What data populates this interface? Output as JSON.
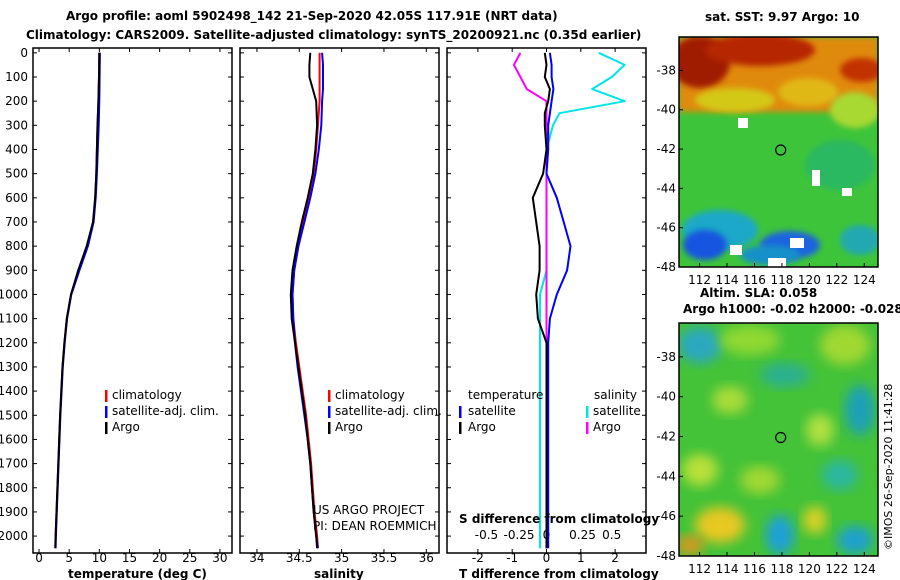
{
  "header": {
    "line1": "Argo profile: aoml 5902498_142 21-Sep-2020 42.05S 117.91E (NRT data)",
    "line2": "Climatology: CARS2009. Satellite-adjusted climatology: synTS_20200921.nc (0.35d earlier)"
  },
  "credits": {
    "project": "US ARGO PROJECT",
    "pi": "PI: DEAN ROEMMICH"
  },
  "watermark": "©IMOS 26-Sep-2020 11:41:28",
  "colors": {
    "clim": "#ff0000",
    "sat": "#0000ff",
    "argo": "#000000",
    "sat_sal": "#00e5e5",
    "argo_sal": "#ff00ff"
  },
  "chart_data": [
    {
      "type": "line",
      "id": "temperature",
      "xlabel": "temperature (deg C)",
      "xlim": [
        -1,
        32
      ],
      "ylim": [
        2070,
        -20
      ],
      "xticks": [
        0,
        5,
        10,
        15,
        20,
        25,
        30
      ],
      "yticks": [
        0,
        100,
        200,
        300,
        400,
        500,
        600,
        700,
        800,
        900,
        1000,
        1100,
        1200,
        1300,
        1400,
        1500,
        1600,
        1700,
        1800,
        1900,
        2000
      ],
      "legend": [
        "climatology",
        "satellite-adj. clim.",
        "Argo"
      ],
      "depth": [
        0,
        100,
        200,
        300,
        400,
        500,
        600,
        700,
        800,
        900,
        1000,
        1100,
        1200,
        1300,
        1400,
        1500,
        1600,
        1700,
        1800,
        1900,
        2000,
        2050
      ],
      "series": [
        {
          "name": "climatology",
          "values": [
            10.0,
            9.95,
            9.85,
            9.7,
            9.6,
            9.5,
            9.35,
            9.0,
            8.0,
            6.6,
            5.3,
            4.6,
            4.2,
            3.9,
            3.7,
            3.5,
            3.35,
            3.2,
            3.05,
            2.9,
            2.75,
            2.7
          ]
        },
        {
          "name": "satellite-adj. clim.",
          "values": [
            10.1,
            10.05,
            10.0,
            9.9,
            9.75,
            9.6,
            9.4,
            9.05,
            8.1,
            6.7,
            5.35,
            4.65,
            4.25,
            3.95,
            3.75,
            3.55,
            3.4,
            3.25,
            3.1,
            2.95,
            2.8,
            2.75
          ]
        },
        {
          "name": "Argo",
          "values": [
            10.0,
            9.95,
            9.85,
            9.7,
            9.6,
            9.5,
            9.3,
            8.95,
            7.9,
            6.5,
            5.3,
            4.6,
            4.2,
            3.9,
            3.7,
            3.5,
            3.35,
            3.2,
            3.05,
            2.9,
            2.75,
            2.7
          ]
        }
      ]
    },
    {
      "type": "line",
      "id": "salinity",
      "xlabel": "salinity",
      "xlim": [
        33.8,
        36.15
      ],
      "ylim": [
        2070,
        -20
      ],
      "xticks": [
        34,
        34.5,
        35,
        35.5,
        36
      ],
      "legend": [
        "climatology",
        "satellite-adj. clim.",
        "Argo"
      ],
      "depth": [
        0,
        50,
        100,
        150,
        200,
        300,
        400,
        500,
        600,
        700,
        800,
        900,
        1000,
        1100,
        1200,
        1300,
        1400,
        1500,
        1600,
        1700,
        1800,
        1900,
        2000,
        2050
      ],
      "series": [
        {
          "name": "climatology",
          "values": [
            34.74,
            34.74,
            34.74,
            34.74,
            34.74,
            34.72,
            34.7,
            34.67,
            34.62,
            34.55,
            34.49,
            34.44,
            34.42,
            34.43,
            34.46,
            34.5,
            34.54,
            34.58,
            34.61,
            34.64,
            34.66,
            34.68,
            34.71,
            34.72
          ]
        },
        {
          "name": "satellite-adj. clim.",
          "values": [
            34.77,
            34.78,
            34.78,
            34.78,
            34.77,
            34.76,
            34.73,
            34.69,
            34.63,
            34.56,
            34.49,
            34.44,
            34.42,
            34.43,
            34.45,
            34.48,
            34.52,
            34.56,
            34.6,
            34.63,
            34.65,
            34.67,
            34.7,
            34.72
          ]
        },
        {
          "name": "Argo",
          "values": [
            34.63,
            34.62,
            34.62,
            34.66,
            34.7,
            34.71,
            34.69,
            34.66,
            34.6,
            34.53,
            34.47,
            34.42,
            34.4,
            34.41,
            34.45,
            34.49,
            34.53,
            34.57,
            34.6,
            34.63,
            34.65,
            34.67,
            34.7,
            34.71
          ]
        }
      ]
    },
    {
      "type": "line",
      "id": "difference",
      "xlabel": "T difference from climatology",
      "xlabel_top": "S difference from climatology",
      "xlim": [
        -2.9,
        2.9
      ],
      "ylim": [
        2070,
        -20
      ],
      "xticks": [
        -2,
        -1,
        0,
        1,
        2
      ],
      "xticks_top": [
        "-0.5",
        "-0.25",
        "0",
        "0.25",
        "0.5"
      ],
      "legend_left_title": "temperature",
      "legend_right_title": "salinity",
      "legend_left": [
        "satellite",
        "Argo"
      ],
      "legend_right": [
        "satellite",
        "Argo"
      ],
      "depth": [
        0,
        50,
        100,
        150,
        200,
        250,
        300,
        400,
        500,
        600,
        700,
        800,
        900,
        1000,
        1100,
        1200,
        1300,
        1400,
        1500,
        1600,
        1700,
        1800,
        1900,
        2000,
        2050
      ],
      "series": [
        {
          "name": "T satellite",
          "values": [
            0.1,
            0.15,
            0.15,
            0.2,
            0.15,
            0.1,
            0.05,
            0.05,
            0.0,
            0.3,
            0.5,
            0.7,
            0.6,
            0.3,
            0.1,
            0.05,
            0.05,
            0.05,
            0.05,
            0.05,
            0.05,
            0.05,
            0.05,
            0.05,
            0.05
          ]
        },
        {
          "name": "T Argo",
          "values": [
            -0.05,
            0.0,
            -0.05,
            0.1,
            0.05,
            -0.05,
            -0.05,
            0.0,
            -0.1,
            -0.4,
            -0.3,
            -0.2,
            -0.2,
            -0.3,
            -0.25,
            0.0,
            0.0,
            0.0,
            0.0,
            0.0,
            0.0,
            0.0,
            0.0,
            0.0,
            0.0
          ]
        },
        {
          "name": "S satellite",
          "values": [
            0.4,
            0.6,
            0.5,
            0.35,
            0.6,
            0.1,
            0.05,
            0.0,
            0.0,
            0.0,
            0.0,
            0.0,
            0.0,
            -0.05,
            -0.05,
            -0.05,
            -0.05,
            -0.05,
            -0.05,
            -0.05,
            -0.05,
            -0.05,
            -0.05,
            -0.05,
            -0.05
          ]
        },
        {
          "name": "S Argo",
          "values": [
            -0.2,
            -0.25,
            -0.2,
            -0.15,
            0.0,
            0.0,
            0.0,
            0.0,
            0.0,
            0.0,
            0.0,
            0.0,
            0.0,
            0.0,
            0.0,
            0.0,
            0.0,
            0.0,
            0.0,
            0.0,
            0.0,
            0.0,
            0.0,
            0.0,
            0.0
          ]
        }
      ]
    },
    {
      "type": "heatmap",
      "id": "sst_map",
      "title": "sat. SST: 9.97 Argo: 10",
      "xticks": [
        "112",
        "114",
        "116",
        "118",
        "120",
        "122",
        "124"
      ],
      "yticks": [
        "-38",
        "-40",
        "-42",
        "-44",
        "-46",
        "-48"
      ],
      "xlim": [
        110.5,
        125
      ],
      "ylim": [
        -48,
        -36.3
      ],
      "argo_position": [
        117.91,
        -42.05
      ]
    },
    {
      "type": "heatmap",
      "id": "sla_map",
      "title": "Altim. SLA: 0.058",
      "subtitle": "Argo h1000: -0.02 h2000: -0.028",
      "xticks": [
        "112",
        "114",
        "116",
        "118",
        "120",
        "122",
        "124"
      ],
      "yticks": [
        "-38",
        "-40",
        "-42",
        "-44",
        "-46",
        "-48"
      ],
      "xlim": [
        110.5,
        125
      ],
      "ylim": [
        -48,
        -36.3
      ],
      "argo_position": [
        117.91,
        -42.05
      ]
    }
  ]
}
